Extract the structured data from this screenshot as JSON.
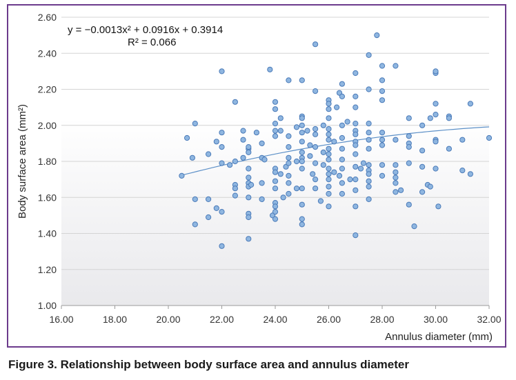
{
  "caption": "Figure 3. Relationship between body surface area and annulus diameter",
  "chart_data": {
    "type": "scatter",
    "title": "",
    "xlabel": "Annulus diameter (mm)",
    "ylabel": "Body surface area (mm²)",
    "xlim": [
      16,
      32
    ],
    "ylim": [
      1.0,
      2.6
    ],
    "x_ticks": [
      "16.00",
      "18.00",
      "20.00",
      "22.00",
      "24.00",
      "26.00",
      "28.00",
      "30.00",
      "32.00"
    ],
    "y_ticks": [
      "1.00",
      "1.20",
      "1.40",
      "1.60",
      "1.80",
      "2.00",
      "2.20",
      "2.40",
      "2.60"
    ],
    "grid": "horizontal",
    "legend": "none",
    "equation": "y = −0.0013x² + 0.0916x + 0.3914",
    "r_squared": "R² = 0.066",
    "trendline": {
      "a": -0.0013,
      "b": 0.0916,
      "c": 0.3914,
      "x_range": [
        20.5,
        32.0
      ]
    },
    "colors": {
      "point_fill": "#8fb6e0",
      "point_stroke": "#4a7ab8",
      "trend": "#5b8fc7",
      "frame": "#6b3a8c"
    },
    "points": [
      [
        20.5,
        1.72
      ],
      [
        20.7,
        1.93
      ],
      [
        20.9,
        1.82
      ],
      [
        21.0,
        2.01
      ],
      [
        21.0,
        1.59
      ],
      [
        21.0,
        1.45
      ],
      [
        21.5,
        1.84
      ],
      [
        21.5,
        1.59
      ],
      [
        21.5,
        1.49
      ],
      [
        21.8,
        1.91
      ],
      [
        21.8,
        1.54
      ],
      [
        22.0,
        1.79
      ],
      [
        22.0,
        1.88
      ],
      [
        22.0,
        1.96
      ],
      [
        22.0,
        1.52
      ],
      [
        22.0,
        1.33
      ],
      [
        22.0,
        2.3
      ],
      [
        22.3,
        1.78
      ],
      [
        22.5,
        2.13
      ],
      [
        22.5,
        1.8
      ],
      [
        22.5,
        1.67
      ],
      [
        22.5,
        1.65
      ],
      [
        22.5,
        1.61
      ],
      [
        22.8,
        1.97
      ],
      [
        22.8,
        1.92
      ],
      [
        22.8,
        1.82
      ],
      [
        23.0,
        1.87
      ],
      [
        23.0,
        1.85
      ],
      [
        23.0,
        1.88
      ],
      [
        23.0,
        1.76
      ],
      [
        23.0,
        1.71
      ],
      [
        23.0,
        1.68
      ],
      [
        23.0,
        1.66
      ],
      [
        23.0,
        1.6
      ],
      [
        23.0,
        1.51
      ],
      [
        23.0,
        1.49
      ],
      [
        23.0,
        1.37
      ],
      [
        23.1,
        1.67
      ],
      [
        23.3,
        1.96
      ],
      [
        23.5,
        1.9
      ],
      [
        23.5,
        1.82
      ],
      [
        23.5,
        1.68
      ],
      [
        23.5,
        1.59
      ],
      [
        23.6,
        1.81
      ],
      [
        23.8,
        2.31
      ],
      [
        23.9,
        1.5
      ],
      [
        24.0,
        2.13
      ],
      [
        24.0,
        2.09
      ],
      [
        24.0,
        2.01
      ],
      [
        24.0,
        1.97
      ],
      [
        24.0,
        1.94
      ],
      [
        24.0,
        1.76
      ],
      [
        24.0,
        1.74
      ],
      [
        24.0,
        1.69
      ],
      [
        24.0,
        1.65
      ],
      [
        24.0,
        1.57
      ],
      [
        24.0,
        1.55
      ],
      [
        24.0,
        1.52
      ],
      [
        24.0,
        1.48
      ],
      [
        24.2,
        2.04
      ],
      [
        24.2,
        1.97
      ],
      [
        24.2,
        1.73
      ],
      [
        24.3,
        1.6
      ],
      [
        24.4,
        1.77
      ],
      [
        24.5,
        2.25
      ],
      [
        24.5,
        1.94
      ],
      [
        24.5,
        1.88
      ],
      [
        24.5,
        1.82
      ],
      [
        24.5,
        1.79
      ],
      [
        24.5,
        1.72
      ],
      [
        24.5,
        1.68
      ],
      [
        24.5,
        1.62
      ],
      [
        24.8,
        1.8
      ],
      [
        24.8,
        1.65
      ],
      [
        24.8,
        1.99
      ],
      [
        25.0,
        2.25
      ],
      [
        25.0,
        2.05
      ],
      [
        25.0,
        2.04
      ],
      [
        25.0,
        2.0
      ],
      [
        25.0,
        1.96
      ],
      [
        25.0,
        1.91
      ],
      [
        25.0,
        1.85
      ],
      [
        25.0,
        1.82
      ],
      [
        25.0,
        1.8
      ],
      [
        25.0,
        1.76
      ],
      [
        25.0,
        1.65
      ],
      [
        25.0,
        1.56
      ],
      [
        25.0,
        1.48
      ],
      [
        25.0,
        1.45
      ],
      [
        25.2,
        1.97
      ],
      [
        25.3,
        1.89
      ],
      [
        25.3,
        1.83
      ],
      [
        25.4,
        1.73
      ],
      [
        25.5,
        2.45
      ],
      [
        25.5,
        2.19
      ],
      [
        25.5,
        1.98
      ],
      [
        25.5,
        1.95
      ],
      [
        25.5,
        1.88
      ],
      [
        25.5,
        1.79
      ],
      [
        25.5,
        1.7
      ],
      [
        25.5,
        1.65
      ],
      [
        25.7,
        1.58
      ],
      [
        25.8,
        2.0
      ],
      [
        25.8,
        1.85
      ],
      [
        25.8,
        1.78
      ],
      [
        26.0,
        2.14
      ],
      [
        26.0,
        2.12
      ],
      [
        26.0,
        2.09
      ],
      [
        26.0,
        2.04
      ],
      [
        26.0,
        1.98
      ],
      [
        26.0,
        1.95
      ],
      [
        26.0,
        1.92
      ],
      [
        26.0,
        1.87
      ],
      [
        26.0,
        1.84
      ],
      [
        26.0,
        1.81
      ],
      [
        26.0,
        1.76
      ],
      [
        26.0,
        1.73
      ],
      [
        26.0,
        1.7
      ],
      [
        26.0,
        1.66
      ],
      [
        26.0,
        1.62
      ],
      [
        26.0,
        1.55
      ],
      [
        26.2,
        1.91
      ],
      [
        26.2,
        1.74
      ],
      [
        26.3,
        2.1
      ],
      [
        26.4,
        2.18
      ],
      [
        26.4,
        1.72
      ],
      [
        26.5,
        2.23
      ],
      [
        26.5,
        2.16
      ],
      [
        26.5,
        2.0
      ],
      [
        26.5,
        1.93
      ],
      [
        26.5,
        1.87
      ],
      [
        26.5,
        1.81
      ],
      [
        26.5,
        1.76
      ],
      [
        26.5,
        1.68
      ],
      [
        26.5,
        1.62
      ],
      [
        26.7,
        2.02
      ],
      [
        26.8,
        1.7
      ],
      [
        27.0,
        2.29
      ],
      [
        27.0,
        2.16
      ],
      [
        27.0,
        2.1
      ],
      [
        27.0,
        2.01
      ],
      [
        27.0,
        1.97
      ],
      [
        27.0,
        1.95
      ],
      [
        27.0,
        1.91
      ],
      [
        27.0,
        1.89
      ],
      [
        27.0,
        1.84
      ],
      [
        27.0,
        1.77
      ],
      [
        27.0,
        1.7
      ],
      [
        27.0,
        1.64
      ],
      [
        27.0,
        1.55
      ],
      [
        27.0,
        1.39
      ],
      [
        27.2,
        1.76
      ],
      [
        27.3,
        1.79
      ],
      [
        27.5,
        2.39
      ],
      [
        27.5,
        2.2
      ],
      [
        27.5,
        2.01
      ],
      [
        27.5,
        1.96
      ],
      [
        27.5,
        1.92
      ],
      [
        27.5,
        1.87
      ],
      [
        27.5,
        1.78
      ],
      [
        27.5,
        1.75
      ],
      [
        27.5,
        1.73
      ],
      [
        27.5,
        1.69
      ],
      [
        27.5,
        1.66
      ],
      [
        27.5,
        1.59
      ],
      [
        27.8,
        2.5
      ],
      [
        28.0,
        2.33
      ],
      [
        28.0,
        2.25
      ],
      [
        28.0,
        2.14
      ],
      [
        28.0,
        2.19
      ],
      [
        28.0,
        1.96
      ],
      [
        28.0,
        1.92
      ],
      [
        28.0,
        1.89
      ],
      [
        28.0,
        1.78
      ],
      [
        28.0,
        1.72
      ],
      [
        28.5,
        2.33
      ],
      [
        28.5,
        1.92
      ],
      [
        28.5,
        1.78
      ],
      [
        28.5,
        1.74
      ],
      [
        28.5,
        1.71
      ],
      [
        28.5,
        1.68
      ],
      [
        28.5,
        1.63
      ],
      [
        28.7,
        1.64
      ],
      [
        29.0,
        2.04
      ],
      [
        29.0,
        1.94
      ],
      [
        29.0,
        1.9
      ],
      [
        29.0,
        1.88
      ],
      [
        29.0,
        1.79
      ],
      [
        29.0,
        1.56
      ],
      [
        29.2,
        1.44
      ],
      [
        29.5,
        2.0
      ],
      [
        29.5,
        1.86
      ],
      [
        29.5,
        1.77
      ],
      [
        29.5,
        1.63
      ],
      [
        29.7,
        1.67
      ],
      [
        29.8,
        2.04
      ],
      [
        29.8,
        1.66
      ],
      [
        30.0,
        2.29
      ],
      [
        30.0,
        2.3
      ],
      [
        30.0,
        2.12
      ],
      [
        30.0,
        2.06
      ],
      [
        30.0,
        1.92
      ],
      [
        30.0,
        1.91
      ],
      [
        30.0,
        1.76
      ],
      [
        30.1,
        1.55
      ],
      [
        30.5,
        2.05
      ],
      [
        30.5,
        2.04
      ],
      [
        30.5,
        1.87
      ],
      [
        31.0,
        1.92
      ],
      [
        31.0,
        1.75
      ],
      [
        31.3,
        2.12
      ],
      [
        31.3,
        1.73
      ],
      [
        32.0,
        1.93
      ]
    ]
  }
}
